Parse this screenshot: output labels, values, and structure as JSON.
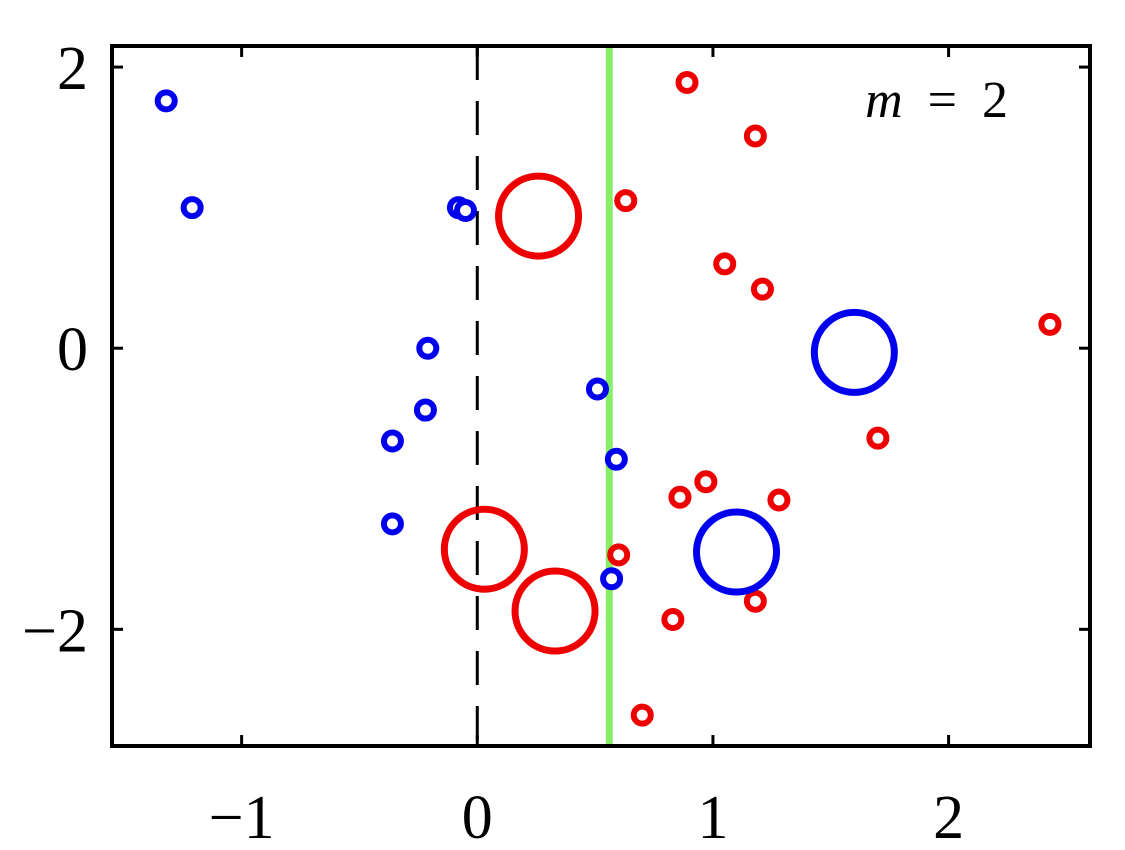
{
  "chart_data": {
    "type": "scatter",
    "title": "",
    "xlabel": "",
    "ylabel": "",
    "xlim": [
      -1.55,
      2.6
    ],
    "ylim": [
      -2.83,
      2.15
    ],
    "x_ticks": [
      -1,
      0,
      1,
      2
    ],
    "y_ticks": [
      -2,
      0,
      2
    ],
    "x_tick_labels": [
      "−1",
      "0",
      "1",
      "2"
    ],
    "y_tick_labels": [
      "−2",
      "0",
      "2"
    ],
    "grid": false,
    "annotation": {
      "variable": "m",
      "operator": "=",
      "value": "2"
    },
    "colors": {
      "blue": "#0000ee",
      "red": "#ee0000",
      "boundary": "#88ee66",
      "dashed": "#000000"
    },
    "series": [
      {
        "kind": "small-circle",
        "color": "blue",
        "points": [
          [
            -1.32,
            1.76
          ],
          [
            -1.21,
            1.0
          ],
          [
            -0.08,
            1.0
          ],
          [
            -0.05,
            0.98
          ],
          [
            -0.21,
            0.0
          ],
          [
            -0.22,
            -0.44
          ],
          [
            -0.36,
            -0.66
          ],
          [
            -0.36,
            -1.25
          ],
          [
            0.51,
            -0.29
          ],
          [
            0.59,
            -0.79
          ],
          [
            0.57,
            -1.64
          ]
        ]
      },
      {
        "kind": "small-circle",
        "color": "red",
        "points": [
          [
            0.89,
            1.89
          ],
          [
            1.18,
            1.51
          ],
          [
            0.63,
            1.05
          ],
          [
            1.05,
            0.6
          ],
          [
            1.21,
            0.42
          ],
          [
            2.43,
            0.17
          ],
          [
            1.7,
            -0.64
          ],
          [
            0.97,
            -0.95
          ],
          [
            0.86,
            -1.06
          ],
          [
            1.28,
            -1.08
          ],
          [
            0.6,
            -1.47
          ],
          [
            1.18,
            -1.8
          ],
          [
            0.83,
            -1.93
          ],
          [
            0.7,
            -2.61
          ]
        ]
      },
      {
        "kind": "large-circle",
        "color": "red",
        "points": [
          [
            0.26,
            0.94
          ],
          [
            0.03,
            -1.43
          ],
          [
            0.33,
            -1.87
          ]
        ]
      },
      {
        "kind": "large-circle",
        "color": "blue",
        "points": [
          [
            1.6,
            -0.03
          ],
          [
            1.1,
            -1.45
          ]
        ]
      }
    ],
    "vertical_lines": [
      {
        "x": 0.0,
        "style": "dashed",
        "color": "dashed"
      },
      {
        "x": 0.56,
        "style": "solid",
        "color": "boundary"
      }
    ]
  }
}
